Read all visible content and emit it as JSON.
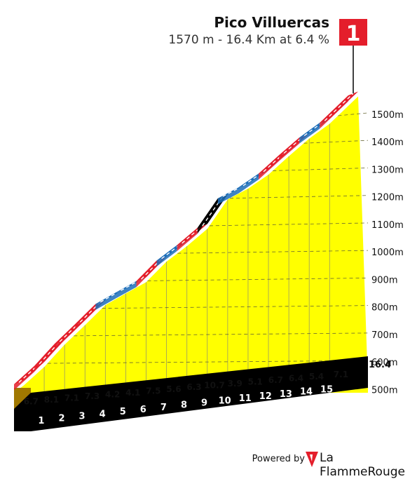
{
  "header": {
    "title": "Pico Villuercas",
    "subtitle": "1570 m - 16.4 Km at 6.4 %"
  },
  "marker": {
    "label": "1",
    "color": "#e41e2b"
  },
  "footer": {
    "powered_label": "Powered by",
    "brand_name": "La FlammeRouge"
  },
  "colors": {
    "yellow_fill": "#ffff00",
    "base_brown": "#a07800",
    "km_strip": "#000000",
    "grade_3_6": "#1d6fb8",
    "grade_6_9": "#e41e2b",
    "grade_9_plus": "#000000",
    "grade_0_3": "#6fcf2c"
  },
  "chart_data": {
    "type": "area",
    "title": "Pico Villuercas",
    "subtitle": "1570 m - 16.4 Km at 6.4 %",
    "xlabel": "",
    "ylabel": "",
    "x_unit": "km",
    "y_unit": "m",
    "xlim": [
      0,
      16.4
    ],
    "ylim": [
      520,
      1570
    ],
    "grid": true,
    "y_ticks": [
      {
        "value": 500,
        "label": "500m"
      },
      {
        "value": 600,
        "label": "600m"
      },
      {
        "value": 700,
        "label": "700m"
      },
      {
        "value": 800,
        "label": "800m"
      },
      {
        "value": 900,
        "label": "900m"
      },
      {
        "value": 1000,
        "label": "1000m"
      },
      {
        "value": 1100,
        "label": "1100m"
      },
      {
        "value": 1200,
        "label": "1200m"
      },
      {
        "value": 1300,
        "label": "1300m"
      },
      {
        "value": 1400,
        "label": "1400m"
      },
      {
        "value": 1500,
        "label": "1500m"
      }
    ],
    "km_labels": [
      "1",
      "2",
      "3",
      "4",
      "5",
      "6",
      "7",
      "8",
      "9",
      "10",
      "11",
      "12",
      "13",
      "14",
      "15"
    ],
    "end_label": "16.4",
    "segments": [
      {
        "km": "1",
        "from": 0,
        "to": 1,
        "gradient": 6.7,
        "label": "6.7"
      },
      {
        "km": "2",
        "from": 1,
        "to": 2,
        "gradient": 8.1,
        "label": "8.1"
      },
      {
        "km": "3",
        "from": 2,
        "to": 3,
        "gradient": 7.1,
        "label": "7.1"
      },
      {
        "km": "4",
        "from": 3,
        "to": 4,
        "gradient": 7.3,
        "label": "7.3"
      },
      {
        "km": "5",
        "from": 4,
        "to": 5,
        "gradient": 4.2,
        "label": "4.2"
      },
      {
        "km": "6",
        "from": 5,
        "to": 6,
        "gradient": 4.1,
        "label": "4.1"
      },
      {
        "km": "7",
        "from": 6,
        "to": 7,
        "gradient": 7.5,
        "label": "7.5"
      },
      {
        "km": "8",
        "from": 7,
        "to": 8,
        "gradient": 5.6,
        "label": "5.6"
      },
      {
        "km": "9",
        "from": 8,
        "to": 9,
        "gradient": 6.3,
        "label": "6.3"
      },
      {
        "km": "10",
        "from": 9,
        "to": 10,
        "gradient": 10.7,
        "label": "10.7"
      },
      {
        "km": "11",
        "from": 10,
        "to": 11,
        "gradient": 3.9,
        "label": "3.9"
      },
      {
        "km": "12",
        "from": 11,
        "to": 12,
        "gradient": 5.1,
        "label": "5.1"
      },
      {
        "km": "13",
        "from": 12,
        "to": 13,
        "gradient": 6.7,
        "label": "6.7"
      },
      {
        "km": "14",
        "from": 13,
        "to": 14,
        "gradient": 6.4,
        "label": "6.4"
      },
      {
        "km": "15",
        "from": 14,
        "to": 15,
        "gradient": 5.4,
        "label": "5.4"
      },
      {
        "km": "",
        "from": 15,
        "to": 16.4,
        "gradient": 7.1,
        "label": "7.1"
      }
    ]
  }
}
